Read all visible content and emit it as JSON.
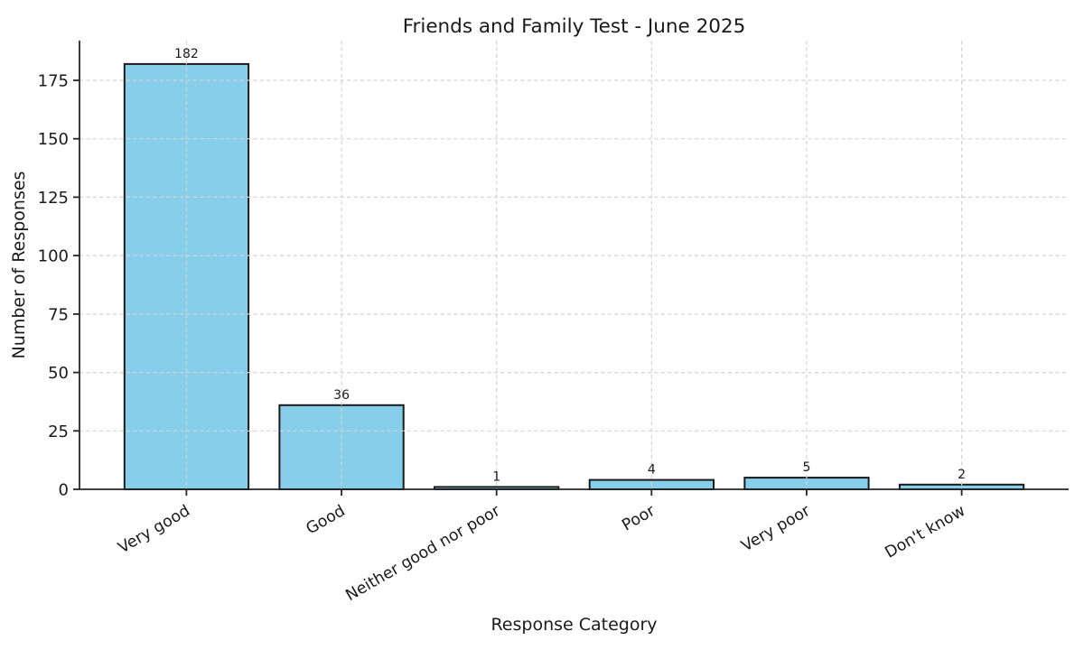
{
  "figure": {
    "background": "#ffffff"
  },
  "chart_data": {
    "type": "bar",
    "title": "Friends and Family Test - June 2025",
    "xlabel": "Response Category",
    "ylabel": "Number of Responses",
    "categories": [
      "Very good",
      "Good",
      "Neither good nor poor",
      "Poor",
      "Very poor",
      "Don't know"
    ],
    "values": [
      182,
      36,
      1,
      4,
      5,
      2
    ],
    "bar_value_labels": [
      "182",
      "36",
      "1",
      "4",
      "5",
      "2"
    ],
    "yticks": [
      0,
      25,
      50,
      75,
      100,
      125,
      150,
      175
    ],
    "ylim": [
      0,
      192
    ],
    "x_tick_rotation_deg": 30,
    "grid": "dashed, horizontal and vertical, drawn above bars",
    "legend_position": "none",
    "colors": {
      "bar_fill": "#87CEEB",
      "bar_edge": "#1a1a1a",
      "grid": "#d4d4d4",
      "spine": "#262626",
      "text": "#1a1a1a"
    }
  }
}
